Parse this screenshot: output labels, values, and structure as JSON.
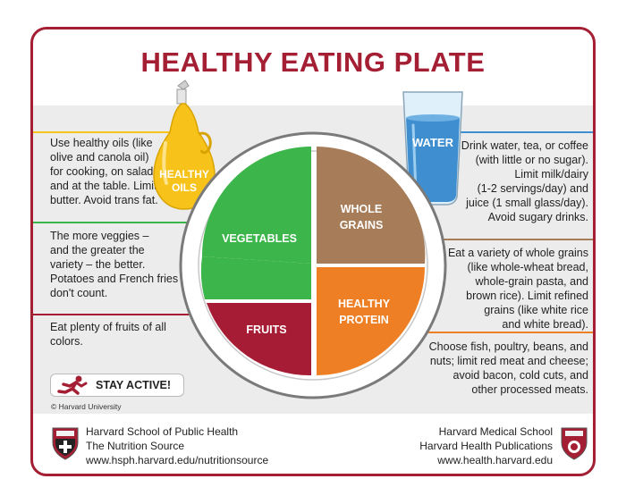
{
  "title": "HEALTHY EATING PLATE",
  "colors": {
    "brand": "#a41e34",
    "vegetables": "#3cb54a",
    "fruits": "#a71c35",
    "grains": "#a67c59",
    "protein": "#ee7f24",
    "oil": "#f7c21a",
    "water": "#3e8ed0"
  },
  "plate": {
    "water_label": "WATER",
    "oils_label": [
      "HEALTHY",
      "OILS"
    ],
    "vegetables_label": "VEGETABLES",
    "fruits_label": "FRUITS",
    "grains_label": [
      "WHOLE",
      "GRAINS"
    ],
    "protein_label": [
      "HEALTHY",
      "PROTEIN"
    ]
  },
  "notes": {
    "oils": [
      "Use healthy oils (like",
      "olive and canola oil)",
      "for cooking, on salad,",
      "and at the table. Limit",
      "butter. Avoid trans fat."
    ],
    "veggies": [
      "The more veggies –",
      "and the greater the",
      "variety – the better.",
      "Potatoes and French fries",
      "don't count."
    ],
    "fruits": [
      "Eat plenty of fruits of all",
      "colors."
    ],
    "water": [
      "Drink water, tea, or coffee",
      "(with little or no sugar).",
      "Limit milk/dairy",
      "(1-2 servings/day) and",
      "juice (1 small glass/day).",
      "Avoid sugary drinks."
    ],
    "grains": [
      "Eat a variety of whole grains",
      "(like whole-wheat bread,",
      "whole-grain pasta, and",
      "brown rice). Limit refined",
      "grains (like white rice",
      "and white bread)."
    ],
    "protein": [
      "Choose fish, poultry, beans, and",
      "nuts;  limit red meat and cheese;",
      "avoid bacon, cold cuts,  and",
      "other processed meats."
    ]
  },
  "stay_active": "STAY ACTIVE!",
  "stay_active_icon": "runner-icon",
  "copyright": "© Harvard University",
  "footer": {
    "left": [
      "Harvard School of Public Health",
      "The Nutrition Source",
      "www.hsph.harvard.edu/nutritionsource"
    ],
    "right": [
      "Harvard Medical School",
      "Harvard Health Publications",
      "www.health.harvard.edu"
    ]
  }
}
